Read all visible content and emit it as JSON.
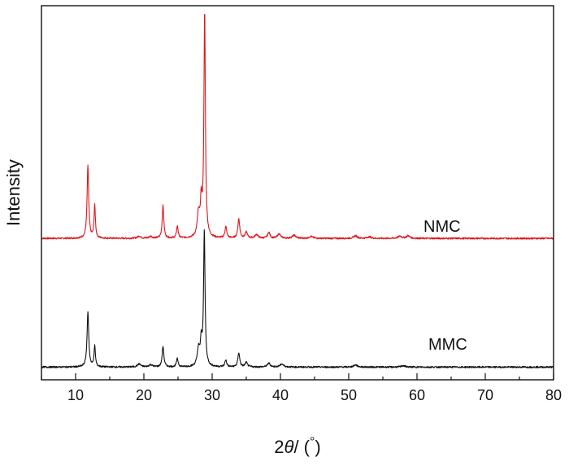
{
  "chart_data": {
    "type": "line",
    "xlabel": {
      "prefix": "2",
      "symbol": "θ",
      "suffix": "/ (",
      "unit": "°",
      "close": ")"
    },
    "ylabel": "Intensity",
    "xlim": [
      5,
      80
    ],
    "xticks": [
      10,
      20,
      30,
      40,
      50,
      60,
      70,
      80
    ],
    "ylim": [
      0,
      1
    ],
    "y_tick_labels": false,
    "grid": false,
    "legend": "none",
    "series": [
      {
        "name": "NMC",
        "color": "#e0161b",
        "baseline": 0.378,
        "noise": 0.0022,
        "peaks": [
          {
            "x": 11.8,
            "height": 0.193,
            "width": 0.14
          },
          {
            "x": 12.8,
            "height": 0.087,
            "width": 0.12
          },
          {
            "x": 19.3,
            "height": 0.006,
            "width": 0.25
          },
          {
            "x": 21.0,
            "height": 0.005,
            "width": 0.25
          },
          {
            "x": 22.8,
            "height": 0.087,
            "width": 0.14
          },
          {
            "x": 24.9,
            "height": 0.032,
            "width": 0.14
          },
          {
            "x": 28.0,
            "height": 0.06,
            "width": 0.22
          },
          {
            "x": 28.4,
            "height": 0.085,
            "width": 0.15
          },
          {
            "x": 28.9,
            "height": 0.6,
            "width": 0.13
          },
          {
            "x": 32.0,
            "height": 0.03,
            "width": 0.16
          },
          {
            "x": 33.9,
            "height": 0.052,
            "width": 0.16
          },
          {
            "x": 35.0,
            "height": 0.016,
            "width": 0.2
          },
          {
            "x": 36.5,
            "height": 0.01,
            "width": 0.25
          },
          {
            "x": 38.3,
            "height": 0.016,
            "width": 0.2
          },
          {
            "x": 39.8,
            "height": 0.012,
            "width": 0.25
          },
          {
            "x": 42.0,
            "height": 0.008,
            "width": 0.3
          },
          {
            "x": 44.5,
            "height": 0.005,
            "width": 0.3
          },
          {
            "x": 51.0,
            "height": 0.007,
            "width": 0.3
          },
          {
            "x": 53.0,
            "height": 0.004,
            "width": 0.3
          },
          {
            "x": 57.5,
            "height": 0.006,
            "width": 0.3
          },
          {
            "x": 58.7,
            "height": 0.007,
            "width": 0.3
          }
        ]
      },
      {
        "name": "MMC",
        "color": "#111111",
        "baseline": 0.034,
        "noise": 0.0022,
        "peaks": [
          {
            "x": 11.8,
            "height": 0.145,
            "width": 0.15
          },
          {
            "x": 12.8,
            "height": 0.055,
            "width": 0.12
          },
          {
            "x": 19.3,
            "height": 0.008,
            "width": 0.3
          },
          {
            "x": 21.0,
            "height": 0.006,
            "width": 0.3
          },
          {
            "x": 22.8,
            "height": 0.055,
            "width": 0.15
          },
          {
            "x": 24.9,
            "height": 0.022,
            "width": 0.15
          },
          {
            "x": 28.0,
            "height": 0.045,
            "width": 0.22
          },
          {
            "x": 28.4,
            "height": 0.06,
            "width": 0.15
          },
          {
            "x": 28.85,
            "height": 0.36,
            "width": 0.13
          },
          {
            "x": 32.0,
            "height": 0.018,
            "width": 0.16
          },
          {
            "x": 33.9,
            "height": 0.038,
            "width": 0.16
          },
          {
            "x": 35.0,
            "height": 0.012,
            "width": 0.2
          },
          {
            "x": 38.3,
            "height": 0.01,
            "width": 0.25
          },
          {
            "x": 40.2,
            "height": 0.008,
            "width": 0.3
          },
          {
            "x": 51.0,
            "height": 0.006,
            "width": 0.3
          },
          {
            "x": 58.0,
            "height": 0.004,
            "width": 0.3
          }
        ]
      }
    ]
  }
}
